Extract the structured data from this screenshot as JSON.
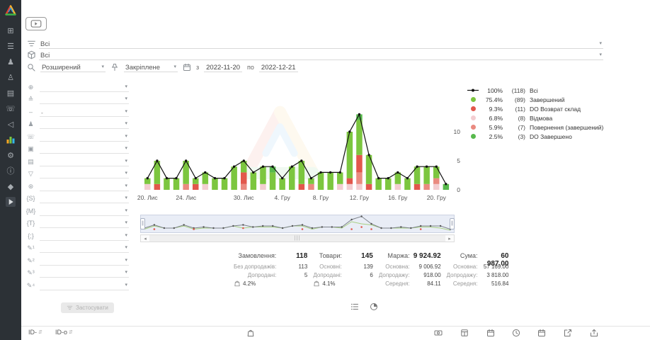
{
  "colors": {
    "accent_green": "#7cc63f",
    "red": "#e2574c",
    "pink": "#f3cdd1",
    "salmon": "#ea8a80",
    "dark_green": "#57b94c",
    "line": "#111111",
    "sidebar_bg": "#2c3136"
  },
  "sidebar": {
    "items": [
      {
        "name": "dashboard",
        "glyph": "⊞"
      },
      {
        "name": "orders",
        "glyph": "☰"
      },
      {
        "name": "clients",
        "glyph": "♟"
      },
      {
        "name": "contacts",
        "glyph": "♙"
      },
      {
        "name": "documents",
        "glyph": "▤"
      },
      {
        "name": "calls",
        "glyph": "☏"
      },
      {
        "name": "marketing",
        "glyph": "◁"
      },
      {
        "name": "analytics",
        "glyph": "chart-svg",
        "active": true
      },
      {
        "name": "settings",
        "glyph": "⚙"
      },
      {
        "name": "info",
        "glyph": "ⓘ"
      },
      {
        "name": "integrations",
        "glyph": "◆"
      },
      {
        "name": "video-lessons",
        "glyph": "play-box"
      }
    ]
  },
  "topbar": {
    "select_orders": {
      "value": "Всі"
    },
    "select_products": {
      "value": "Всі"
    },
    "search": {
      "mode_value": "Розширений",
      "pinned_value": "Закріплене",
      "from_label": "з",
      "date_from": "2022-11-20",
      "to_label": "по",
      "date_to": "2022-12-21"
    }
  },
  "filters": {
    "apply_label": "Застосувати",
    "rows": [
      {
        "name": "site",
        "glyph": "⊕",
        "value": ""
      },
      {
        "name": "delivery",
        "glyph": "≙",
        "value": ""
      },
      {
        "name": "range",
        "glyph": "‒",
        "value": "-"
      },
      {
        "name": "client",
        "glyph": "♟",
        "value": ""
      },
      {
        "name": "phone",
        "glyph": "☏",
        "value": ""
      },
      {
        "name": "product",
        "glyph": "▣",
        "value": ""
      },
      {
        "name": "payment",
        "glyph": "▤",
        "value": ""
      },
      {
        "name": "funnel",
        "glyph": "▽",
        "value": ""
      },
      {
        "name": "source",
        "glyph": "⊛",
        "value": ""
      },
      {
        "name": "utm-source",
        "glyph": "{S}",
        "value": ""
      },
      {
        "name": "utm-medium",
        "glyph": "{M}",
        "value": ""
      },
      {
        "name": "utm-term",
        "glyph": "{T}",
        "value": ""
      },
      {
        "name": "utm-content",
        "glyph": "{;}",
        "value": ""
      },
      {
        "name": "custom-field-1",
        "glyph": "✎¹",
        "value": ""
      },
      {
        "name": "custom-field-2",
        "glyph": "✎²",
        "value": ""
      },
      {
        "name": "custom-field-3",
        "glyph": "✎³",
        "value": ""
      },
      {
        "name": "custom-field-4",
        "glyph": "✎⁴",
        "value": ""
      }
    ]
  },
  "chart_data": {
    "type": "bar+line",
    "dates": [
      "2022-11-20",
      "2022-11-21",
      "2022-11-22",
      "2022-11-23",
      "2022-11-24",
      "2022-11-25",
      "2022-11-26",
      "2022-11-27",
      "2022-11-28",
      "2022-11-29",
      "2022-11-30",
      "2022-12-01",
      "2022-12-02",
      "2022-12-03",
      "2022-12-04",
      "2022-12-05",
      "2022-12-06",
      "2022-12-07",
      "2022-12-08",
      "2022-12-09",
      "2022-12-10",
      "2022-12-11",
      "2022-12-12",
      "2022-12-13",
      "2022-12-14",
      "2022-12-15",
      "2022-12-16",
      "2022-12-17",
      "2022-12-18",
      "2022-12-19",
      "2022-12-20",
      "2022-12-21"
    ],
    "line_series": "Всі",
    "stack_order": [
      "Відмова",
      "Повернення (завершений)",
      "DO Возврат склад",
      "Завершений",
      "DO Завершено"
    ],
    "series": [
      {
        "name": "Всі",
        "type": "line",
        "color": "#111111",
        "values": [
          2,
          5,
          2,
          2,
          5,
          2,
          3,
          2,
          2,
          4,
          5,
          3,
          4,
          4,
          2,
          4,
          5,
          2,
          3,
          3,
          3,
          10,
          13,
          6,
          2,
          2,
          3,
          2,
          4,
          4,
          4,
          1
        ]
      },
      {
        "name": "Завершений",
        "type": "bar",
        "color": "#7cc63f",
        "values": [
          1,
          4,
          2,
          2,
          4,
          1,
          2,
          2,
          2,
          4,
          2,
          3,
          3,
          3,
          2,
          4,
          4,
          1,
          3,
          3,
          2,
          8,
          6,
          5,
          2,
          2,
          2,
          2,
          3,
          3,
          2,
          0
        ]
      },
      {
        "name": "DO Возврат склад",
        "type": "bar",
        "color": "#e2574c",
        "values": [
          0,
          1,
          0,
          0,
          0,
          1,
          0,
          0,
          0,
          0,
          2,
          0,
          0,
          0,
          0,
          0,
          1,
          0,
          0,
          0,
          0,
          1,
          3,
          1,
          0,
          0,
          0,
          0,
          1,
          0,
          0,
          0
        ]
      },
      {
        "name": "Відмова",
        "type": "bar",
        "color": "#f3cdd1",
        "values": [
          1,
          0,
          0,
          0,
          0,
          0,
          1,
          0,
          0,
          0,
          0,
          0,
          1,
          0,
          0,
          0,
          0,
          0,
          0,
          0,
          1,
          1,
          1,
          0,
          0,
          0,
          1,
          0,
          0,
          0,
          1,
          0
        ]
      },
      {
        "name": "Повернення (завершений)",
        "type": "bar",
        "color": "#ea8a80",
        "values": [
          0,
          0,
          0,
          0,
          1,
          0,
          0,
          0,
          0,
          0,
          1,
          0,
          0,
          0,
          0,
          0,
          0,
          1,
          0,
          0,
          0,
          0,
          2,
          0,
          0,
          0,
          0,
          0,
          0,
          1,
          1,
          0
        ]
      },
      {
        "name": "DO Завершено",
        "type": "bar",
        "color": "#57b94c",
        "values": [
          0,
          0,
          0,
          0,
          0,
          0,
          0,
          0,
          0,
          0,
          0,
          0,
          0,
          1,
          0,
          0,
          0,
          0,
          0,
          0,
          0,
          0,
          1,
          0,
          0,
          0,
          0,
          0,
          0,
          0,
          0,
          1
        ]
      }
    ],
    "x_ticks": [
      {
        "i": 0,
        "label": "20. Лис"
      },
      {
        "i": 4,
        "label": "24. Лис"
      },
      {
        "i": 10,
        "label": "30. Лис"
      },
      {
        "i": 14,
        "label": "4. Гру"
      },
      {
        "i": 18,
        "label": "8. Гру"
      },
      {
        "i": 22,
        "label": "12. Гру"
      },
      {
        "i": 26,
        "label": "16. Гру"
      },
      {
        "i": 30,
        "label": "20. Гру"
      }
    ],
    "y_ticks": [
      0,
      5,
      10
    ],
    "ylim": [
      0,
      13
    ],
    "legend_position": "right",
    "grid": false
  },
  "legend": {
    "items": [
      {
        "pct": "100%",
        "count": "(118)",
        "label": "Всі",
        "color": "#111111",
        "marker": "line"
      },
      {
        "pct": "75.4%",
        "count": "(89)",
        "label": "Завершений",
        "color": "#7cc63f",
        "marker": "circle"
      },
      {
        "pct": "9.3%",
        "count": "(11)",
        "label": "DO Возврат склад",
        "color": "#e2574c",
        "marker": "circle"
      },
      {
        "pct": "6.8%",
        "count": "(8)",
        "label": "Відмова",
        "color": "#f3cdd1",
        "marker": "circle"
      },
      {
        "pct": "5.9%",
        "count": "(7)",
        "label": "Повернення (завершений)",
        "color": "#ea8a80",
        "marker": "circle"
      },
      {
        "pct": "2.5%",
        "count": "(3)",
        "label": "DO Завершено",
        "color": "#57b94c",
        "marker": "circle"
      }
    ]
  },
  "stats": {
    "groups": [
      {
        "title": "Замовлення:",
        "value": "118",
        "rows": [
          {
            "label": "Без допродажів:",
            "value": "113"
          },
          {
            "label": "Допродані:",
            "value": "5"
          },
          {
            "icon": "bag",
            "value": "4.2%"
          }
        ]
      },
      {
        "title": "Товари:",
        "value": "145",
        "rows": [
          {
            "label": "Основні:",
            "value": "139"
          },
          {
            "label": "Допродані:",
            "value": "6"
          },
          {
            "icon": "bag",
            "value": "4.1%"
          }
        ]
      },
      {
        "title": "Маржа:",
        "value": "9 924.92",
        "rows": [
          {
            "label": "Основна:",
            "value": "9 006.92"
          },
          {
            "label": "Допродажу:",
            "value": "918.00"
          },
          {
            "label": "Середня:",
            "value": "84.11"
          }
        ]
      },
      {
        "title": "Сума:",
        "value": "60 987.00",
        "rows": [
          {
            "label": "Основна:",
            "value": "57 169.00"
          },
          {
            "label": "Допродажу:",
            "value": "3 818.00"
          },
          {
            "label": "Середня:",
            "value": "516.84"
          }
        ]
      }
    ]
  },
  "footer": {
    "columns": [
      {
        "type": "text",
        "label": "ID-",
        "name": "order-id-column",
        "x": 10
      },
      {
        "type": "text",
        "label": "ID-о",
        "name": "external-id-column",
        "x": 48
      },
      {
        "type": "icon",
        "icon": "bag",
        "name": "products-column",
        "x": 318
      },
      {
        "type": "icon",
        "icon": "money",
        "name": "payment-column",
        "x": 583
      },
      {
        "type": "icon",
        "icon": "box",
        "name": "shipping-column",
        "x": 620
      },
      {
        "type": "icon",
        "icon": "calendar",
        "name": "created-date-column",
        "x": 657
      },
      {
        "type": "icon",
        "icon": "clock",
        "name": "status-time-column",
        "x": 693
      },
      {
        "type": "icon",
        "icon": "calendar",
        "name": "updated-date-column",
        "x": 729
      },
      {
        "type": "icon",
        "icon": "external",
        "name": "open-order-column",
        "x": 766
      },
      {
        "type": "icon",
        "icon": "export",
        "name": "export-column",
        "x": 803
      }
    ]
  }
}
